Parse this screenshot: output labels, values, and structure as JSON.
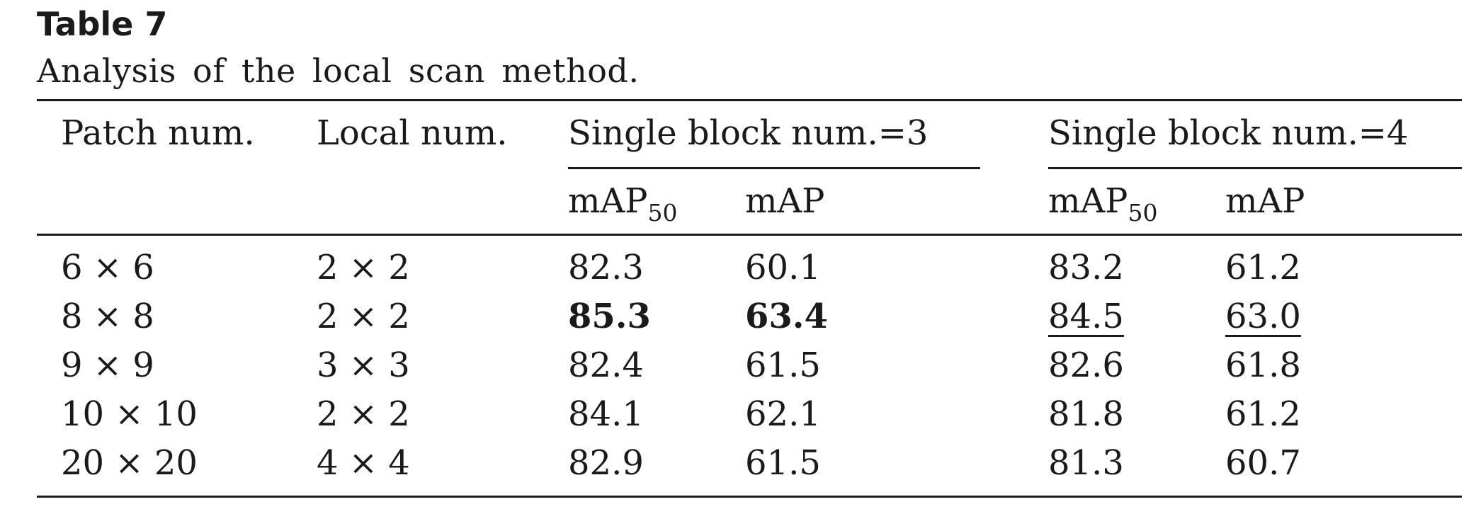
{
  "title": "Table 7",
  "caption": "Analysis of the local scan method.",
  "columns": {
    "patch": "Patch num.",
    "local": "Local num.",
    "group1": "Single block num.=3",
    "group2": "Single block num.=4",
    "map50_base": "mAP",
    "map50_sub": "50",
    "map": "mAP"
  },
  "rows": [
    {
      "patch": "6 × 6",
      "local": "2 × 2",
      "g1_map50": "82.3",
      "g1_map": "60.1",
      "g2_map50": "83.2",
      "g2_map": "61.2"
    },
    {
      "patch": "8 × 8",
      "local": "2 × 2",
      "g1_map50": "85.3",
      "g1_map": "63.4",
      "g2_map50": "84.5",
      "g2_map": "63.0"
    },
    {
      "patch": "9 × 9",
      "local": "3 × 3",
      "g1_map50": "82.4",
      "g1_map": "61.5",
      "g2_map50": "82.6",
      "g2_map": "61.8"
    },
    {
      "patch": "10 × 10",
      "local": "2 × 2",
      "g1_map50": "84.1",
      "g1_map": "62.1",
      "g2_map50": "81.8",
      "g2_map": "61.2"
    },
    {
      "patch": "20 × 20",
      "local": "4 × 4",
      "g1_map50": "82.9",
      "g1_map": "61.5",
      "g2_map50": "81.3",
      "g2_map": "60.7"
    }
  ],
  "emphasis": {
    "best": "bold",
    "second_best": "underline"
  }
}
